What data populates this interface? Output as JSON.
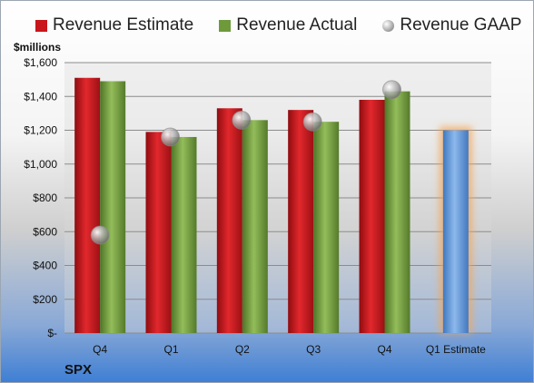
{
  "legend": {
    "estimate": "Revenue Estimate",
    "actual": "Revenue Actual",
    "gaap": "Revenue GAAP"
  },
  "unit_label": "$millions",
  "ticker": "SPX",
  "colors": {
    "estimate": "#c8161b",
    "actual": "#6f9a3c",
    "gaap": "#9a9a9a",
    "projection": "#5b95d6",
    "projection_glow": "#f2a65a"
  },
  "chart_data": {
    "type": "bar",
    "categories": [
      "Q4",
      "Q1",
      "Q2",
      "Q3",
      "Q4",
      "Q1 Estimate"
    ],
    "series": [
      {
        "name": "Revenue Estimate",
        "values": [
          1510,
          1190,
          1330,
          1320,
          1380,
          null
        ]
      },
      {
        "name": "Revenue Actual",
        "values": [
          1490,
          1160,
          1260,
          1250,
          1430,
          null
        ]
      },
      {
        "name": "Revenue GAAP",
        "values": [
          580,
          1160,
          1260,
          1250,
          1440,
          null
        ],
        "marker": "circle"
      },
      {
        "values": [
          null,
          null,
          null,
          null,
          null,
          1200
        ],
        "projection": true
      }
    ],
    "yticks": [
      "$-",
      "$200",
      "$400",
      "$600",
      "$800",
      "$1,000",
      "$1,200",
      "$1,400",
      "$1,600"
    ],
    "ylim": [
      0,
      1600
    ],
    "ylabel": "$millions",
    "grid": true,
    "legend_position": "top"
  }
}
